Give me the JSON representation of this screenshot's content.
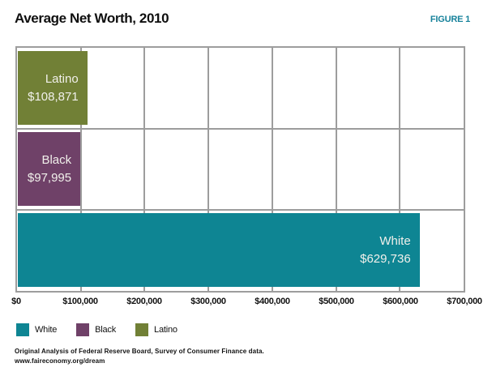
{
  "header": {
    "title": "Average Net Worth, 2010",
    "figure_label": "FIGURE 1"
  },
  "chart_data": {
    "type": "bar",
    "orientation": "horizontal",
    "title": "Average Net Worth, 2010",
    "categories": [
      "Latino",
      "Black",
      "White"
    ],
    "values": [
      108871,
      97995,
      629736
    ],
    "value_labels": [
      "$108,871",
      "$97,995",
      "$629,736"
    ],
    "bar_colors": [
      "#718036",
      "#6F4168",
      "#0E8593"
    ],
    "xlim": [
      0,
      700000
    ],
    "x_ticks": [
      0,
      100000,
      200000,
      300000,
      400000,
      500000,
      600000,
      700000
    ],
    "x_tick_labels": [
      "$0",
      "$100,000",
      "$200,000",
      "$300,000",
      "$400,000",
      "$500,000",
      "$600,000",
      "$700,000"
    ],
    "grid": true,
    "legend_position": "bottom",
    "legend": [
      {
        "label": "White",
        "color": "#0E8593"
      },
      {
        "label": "Black",
        "color": "#6F4168"
      },
      {
        "label": "Latino",
        "color": "#718036"
      }
    ]
  },
  "footer": {
    "source_line1": "Original Analysis of Federal Reserve Board, Survey of Consumer Finance data.",
    "source_line2": "www.faireconomy.org/dream"
  },
  "colors": {
    "figure_label": "#17829B",
    "grid": "#9D9D9D"
  }
}
